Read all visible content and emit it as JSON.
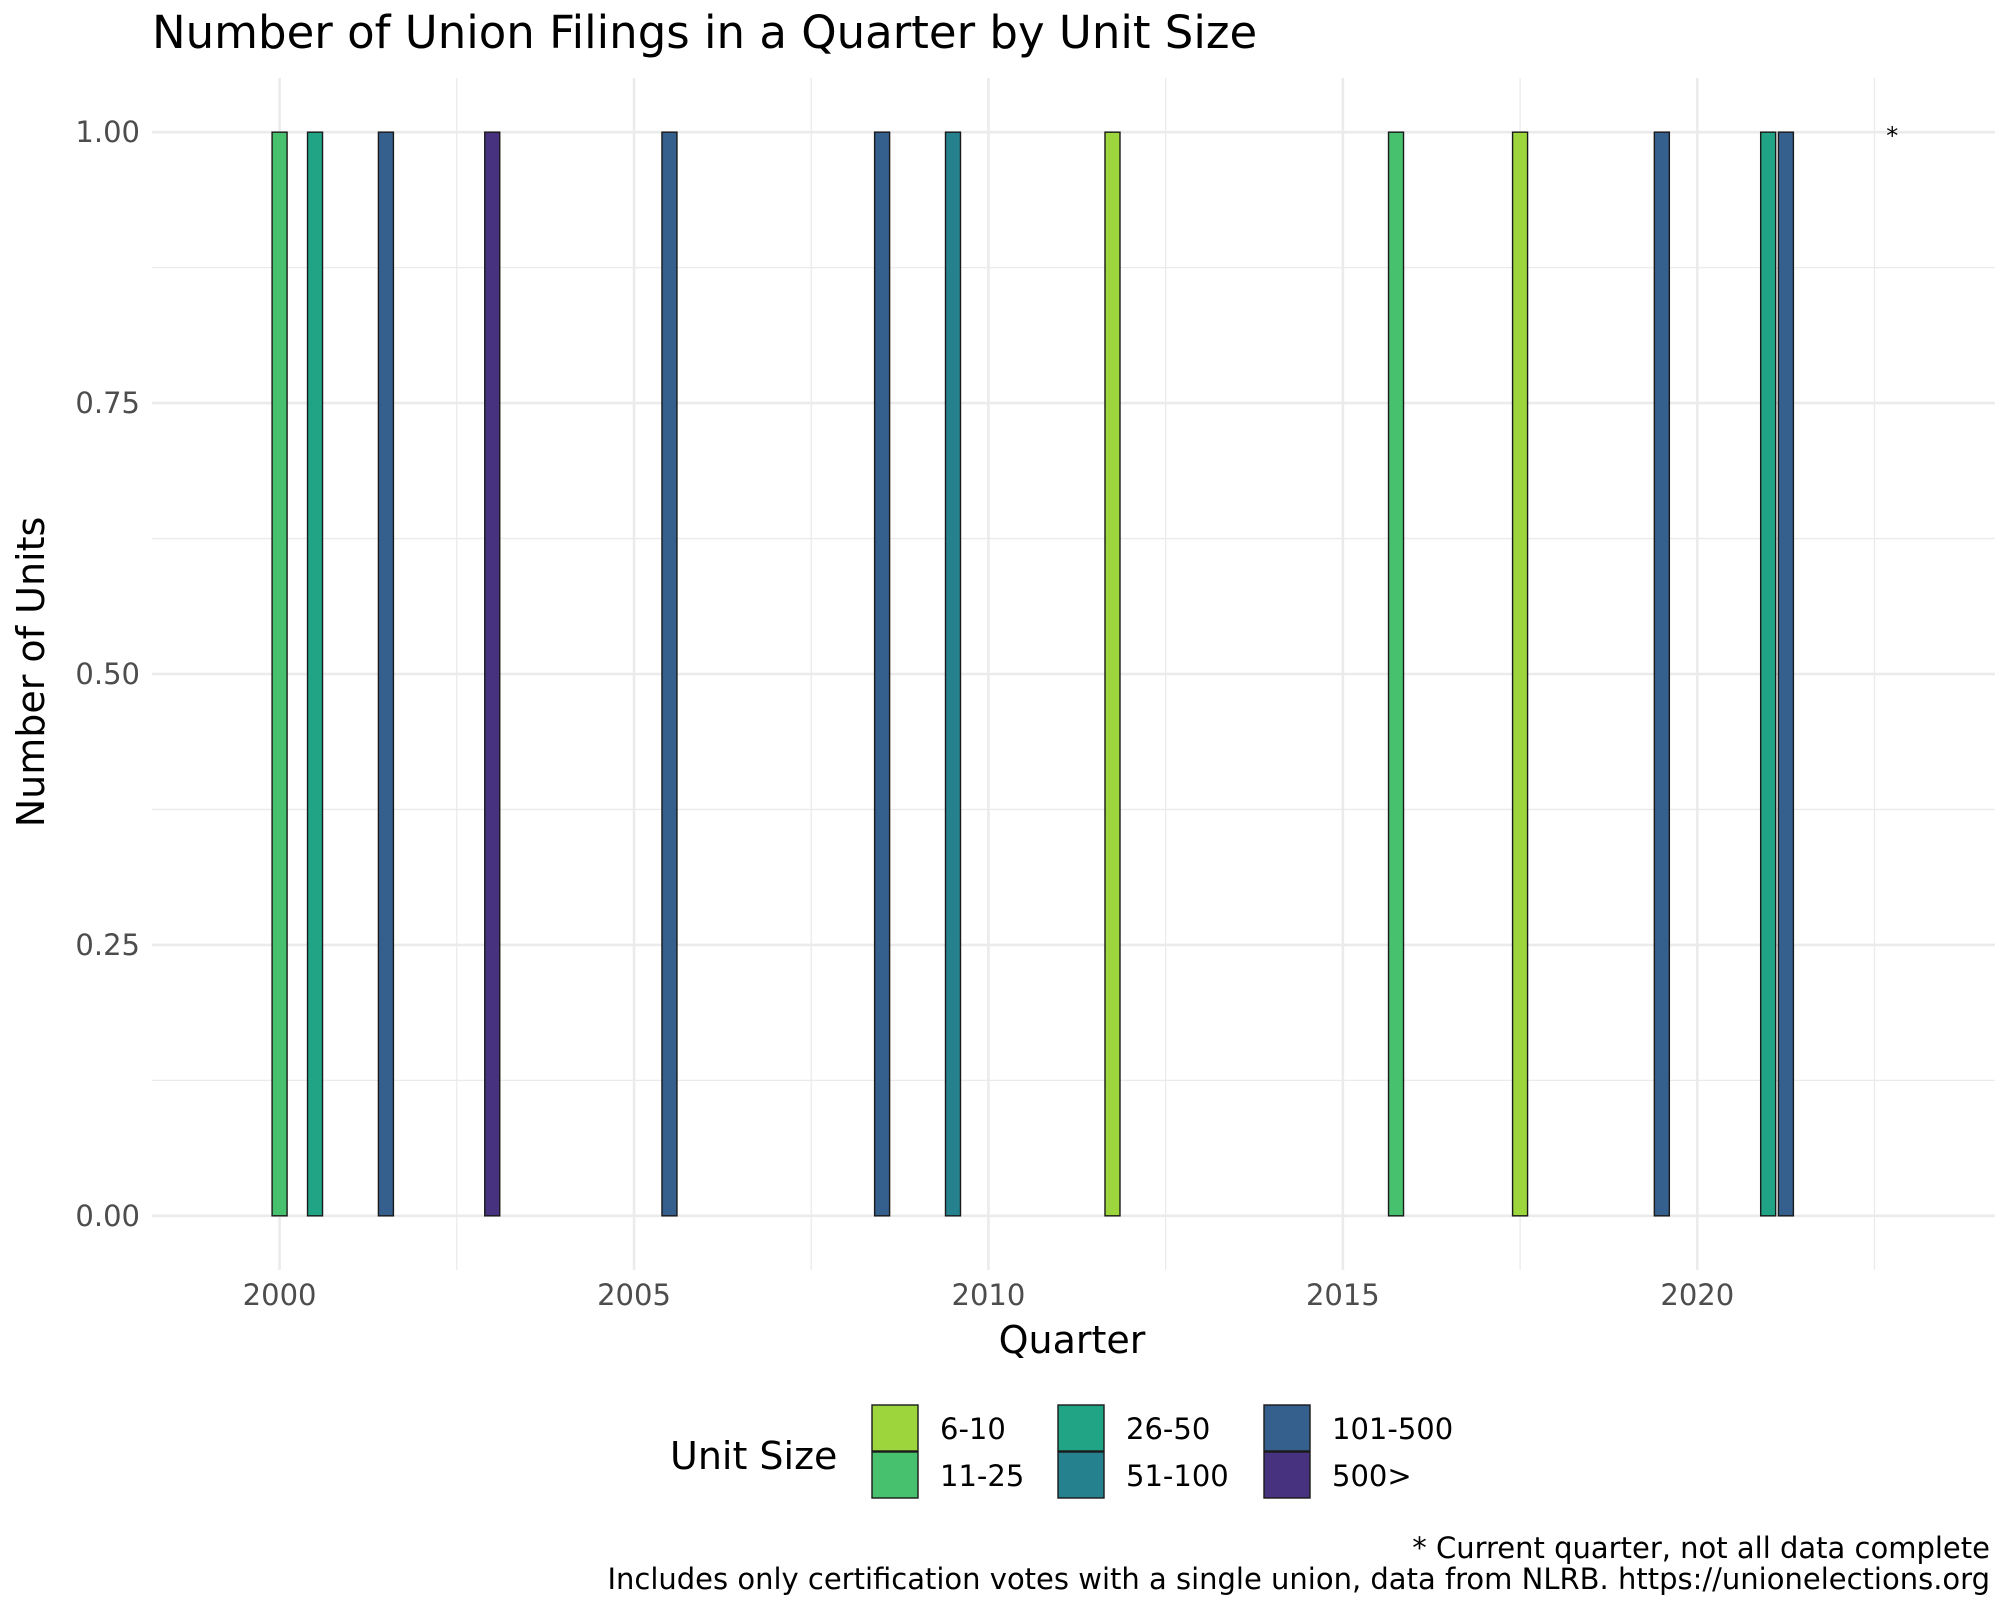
{
  "chart_data": {
    "type": "bar",
    "title": "Number of Union Filings in a Quarter by Unit Size",
    "xlabel": "Quarter",
    "ylabel": "Number of Units",
    "xlim": [
      1998.2,
      2024.2
    ],
    "ylim": [
      -0.05,
      1.05
    ],
    "x_ticks": [
      2000,
      2005,
      2010,
      2015,
      2020
    ],
    "y_ticks": [
      0,
      0.25,
      0.5,
      0.75,
      1
    ],
    "y_tick_labels": [
      "0.00",
      "0.25",
      "0.50",
      "0.75",
      "1.00"
    ],
    "grid": true,
    "legend_title": "Unit Size",
    "legend_position": "bottom",
    "series": [
      {
        "name": "6-10",
        "color": "#9CD63C"
      },
      {
        "name": "11-25",
        "color": "#48C16E"
      },
      {
        "name": "26-50",
        "color": "#21A386"
      },
      {
        "name": "51-100",
        "color": "#25818E"
      },
      {
        "name": "101-500",
        "color": "#355F8D"
      },
      {
        "name": "500>",
        "color": "#46327E"
      }
    ],
    "bars": [
      {
        "x": 2000.0,
        "series": "11-25",
        "value": 1
      },
      {
        "x": 2000.5,
        "series": "26-50",
        "value": 1
      },
      {
        "x": 2001.5,
        "series": "101-500",
        "value": 1
      },
      {
        "x": 2003.0,
        "series": "500>",
        "value": 1
      },
      {
        "x": 2005.5,
        "series": "101-500",
        "value": 1
      },
      {
        "x": 2008.5,
        "series": "101-500",
        "value": 1
      },
      {
        "x": 2009.5,
        "series": "51-100",
        "value": 1
      },
      {
        "x": 2011.75,
        "series": "6-10",
        "value": 1
      },
      {
        "x": 2015.75,
        "series": "11-25",
        "value": 1
      },
      {
        "x": 2017.5,
        "series": "6-10",
        "value": 1
      },
      {
        "x": 2019.5,
        "series": "101-500",
        "value": 1
      },
      {
        "x": 2021.0,
        "series": "26-50",
        "value": 1
      },
      {
        "x": 2021.25,
        "series": "101-500",
        "value": 1
      }
    ],
    "annotation": {
      "text": "*",
      "x": 2022.75,
      "y": 1
    },
    "caption_lines": [
      "* Current quarter, not all data complete",
      "Includes only certification votes with a single union, data from NLRB. https://unionelections.org"
    ]
  }
}
